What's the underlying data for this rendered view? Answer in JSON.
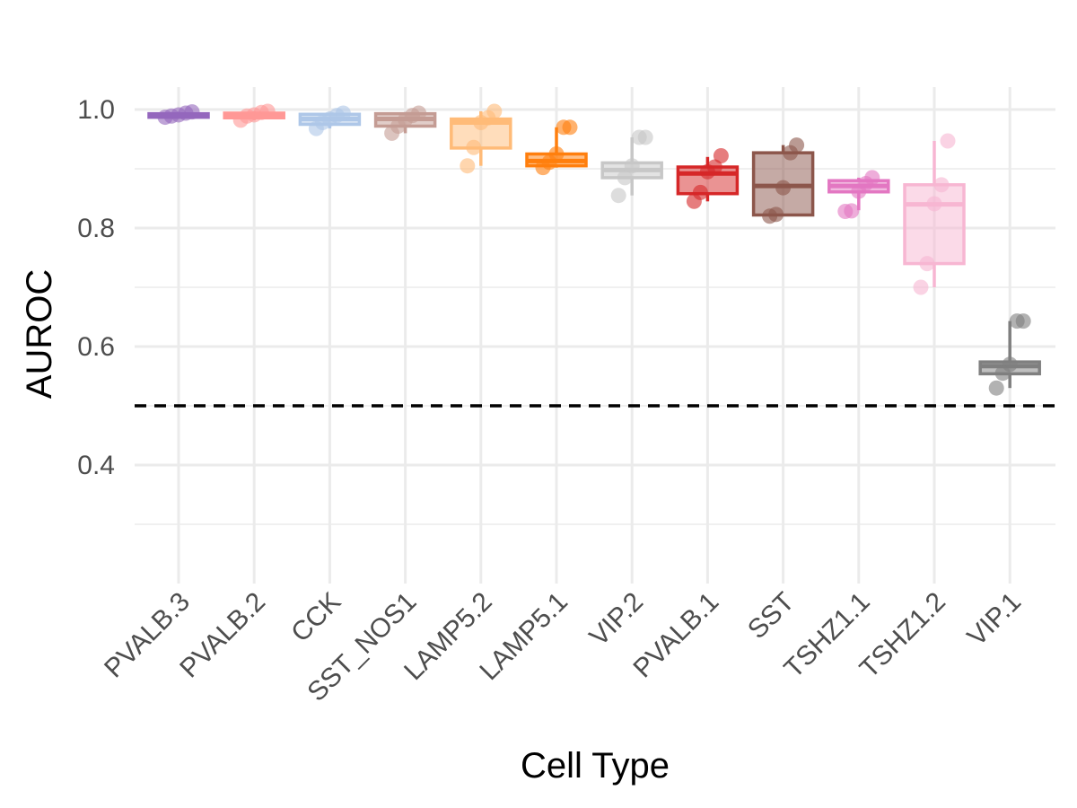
{
  "chart_data": {
    "type": "box",
    "title": "",
    "xlabel": "Cell Type",
    "ylabel": "AUROC",
    "ylim": [
      0.25,
      1.04
    ],
    "yticks": [
      0.4,
      0.6,
      0.8,
      1.0
    ],
    "ytick_labels": [
      "0.4",
      "0.6",
      "0.8",
      "1.0"
    ],
    "reference_line": {
      "y": 0.5,
      "style": "dashed",
      "color": "#000000"
    },
    "grid": true,
    "legend": "none",
    "categories": [
      "PVALB.3",
      "PVALB.2",
      "CCK",
      "SST_NOS1",
      "LAMP5.2",
      "LAMP5.1",
      "VIP.2",
      "PVALB.1",
      "SST",
      "TSHZ1.1",
      "TSHZ1.2",
      "VIP.1"
    ],
    "boxes": [
      {
        "category": "PVALB.3",
        "color": "#9467bd",
        "q1": 0.988,
        "median": 0.99,
        "q3": 0.993,
        "whisker_low": 0.987,
        "whisker_high": 0.996,
        "points": [
          0.987,
          0.989,
          0.991,
          0.994,
          0.996
        ]
      },
      {
        "category": "PVALB.2",
        "color": "#ff9896",
        "q1": 0.986,
        "median": 0.99,
        "q3": 0.994,
        "whisker_low": 0.982,
        "whisker_high": 0.997,
        "points": [
          0.982,
          0.989,
          0.991,
          0.995,
          0.997
        ]
      },
      {
        "category": "CCK",
        "color": "#aec7e8",
        "q1": 0.975,
        "median": 0.984,
        "q3": 0.992,
        "whisker_low": 0.968,
        "whisker_high": 0.994,
        "points": [
          0.968,
          0.978,
          0.984,
          0.99,
          0.994
        ]
      },
      {
        "category": "SST_NOS1",
        "color": "#c49c94",
        "q1": 0.972,
        "median": 0.984,
        "q3": 0.993,
        "whisker_low": 0.96,
        "whisker_high": 0.994,
        "points": [
          0.96,
          0.972,
          0.983,
          0.99,
          0.994
        ]
      },
      {
        "category": "LAMP5.2",
        "color": "#ffbb78",
        "q1": 0.935,
        "median": 0.978,
        "q3": 0.984,
        "whisker_low": 0.905,
        "whisker_high": 0.997,
        "points": [
          0.905,
          0.936,
          0.978,
          0.986,
          0.997
        ]
      },
      {
        "category": "LAMP5.1",
        "color": "#ff7f0e",
        "q1": 0.905,
        "median": 0.913,
        "q3": 0.925,
        "whisker_low": 0.902,
        "whisker_high": 0.97,
        "points": [
          0.902,
          0.911,
          0.925,
          0.97,
          0.97
        ]
      },
      {
        "category": "VIP.2",
        "color": "#c7c7c7",
        "q1": 0.885,
        "median": 0.898,
        "q3": 0.91,
        "whisker_low": 0.855,
        "whisker_high": 0.953,
        "points": [
          0.855,
          0.885,
          0.905,
          0.953,
          0.953
        ]
      },
      {
        "category": "PVALB.1",
        "color": "#d62728",
        "q1": 0.858,
        "median": 0.892,
        "q3": 0.903,
        "whisker_low": 0.845,
        "whisker_high": 0.92,
        "points": [
          0.845,
          0.86,
          0.895,
          0.903,
          0.922
        ]
      },
      {
        "category": "SST",
        "color": "#8c564b",
        "q1": 0.822,
        "median": 0.871,
        "q3": 0.927,
        "whisker_low": 0.82,
        "whisker_high": 0.94,
        "points": [
          0.82,
          0.823,
          0.868,
          0.927,
          0.94
        ]
      },
      {
        "category": "TSHZ1.1",
        "color": "#e377c2",
        "q1": 0.861,
        "median": 0.871,
        "q3": 0.88,
        "whisker_low": 0.83,
        "whisker_high": 0.885,
        "points": [
          0.828,
          0.829,
          0.862,
          0.875,
          0.885
        ]
      },
      {
        "category": "TSHZ1.2",
        "color": "#f7b6d2",
        "q1": 0.74,
        "median": 0.84,
        "q3": 0.873,
        "whisker_low": 0.7,
        "whisker_high": 0.947,
        "points": [
          0.7,
          0.74,
          0.841,
          0.873,
          0.947
        ]
      },
      {
        "category": "VIP.1",
        "color": "#7f7f7f",
        "q1": 0.554,
        "median": 0.567,
        "q3": 0.574,
        "whisker_low": 0.53,
        "whisker_high": 0.643,
        "points": [
          0.53,
          0.555,
          0.57,
          0.643,
          0.643
        ]
      }
    ]
  }
}
